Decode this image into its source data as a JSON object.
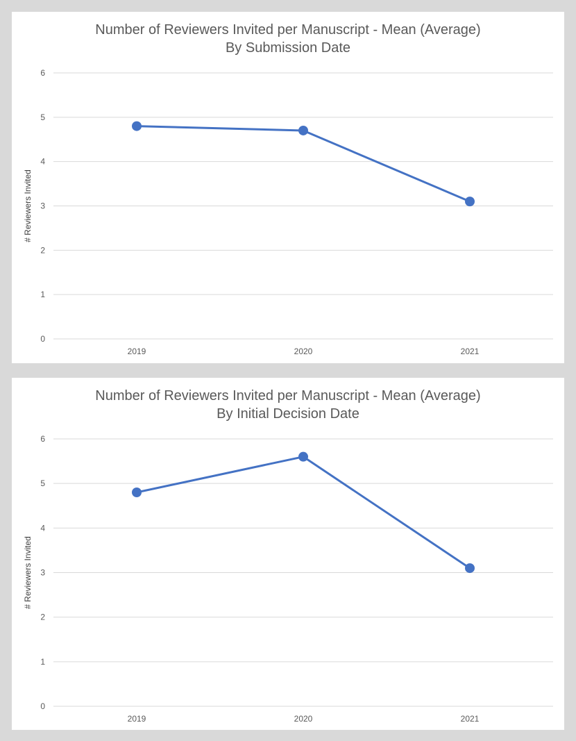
{
  "chart_data": [
    {
      "type": "line",
      "title": "Number of Reviewers Invited per Manuscript - Mean (Average)",
      "subtitle": "By Submission Date",
      "xlabel": "",
      "ylabel": "# Reviewers Invited",
      "categories": [
        "2019",
        "2020",
        "2021"
      ],
      "series": [
        {
          "values": [
            4.8,
            4.7,
            3.1
          ]
        }
      ],
      "ylim": [
        0,
        6
      ],
      "yticks": [
        "0",
        "1",
        "2",
        "3",
        "4",
        "5",
        "6"
      ],
      "grid": true,
      "legend": "none",
      "color": "#4472c4"
    },
    {
      "type": "line",
      "title": "Number of Reviewers Invited per Manuscript - Mean (Average)",
      "subtitle": "By Initial Decision Date",
      "xlabel": "",
      "ylabel": "# Reviewers Invited",
      "categories": [
        "2019",
        "2020",
        "2021"
      ],
      "series": [
        {
          "values": [
            4.8,
            5.6,
            3.1
          ]
        }
      ],
      "ylim": [
        0,
        6
      ],
      "yticks": [
        "0",
        "1",
        "2",
        "3",
        "4",
        "5",
        "6"
      ],
      "grid": true,
      "legend": "none",
      "color": "#4472c4"
    }
  ]
}
